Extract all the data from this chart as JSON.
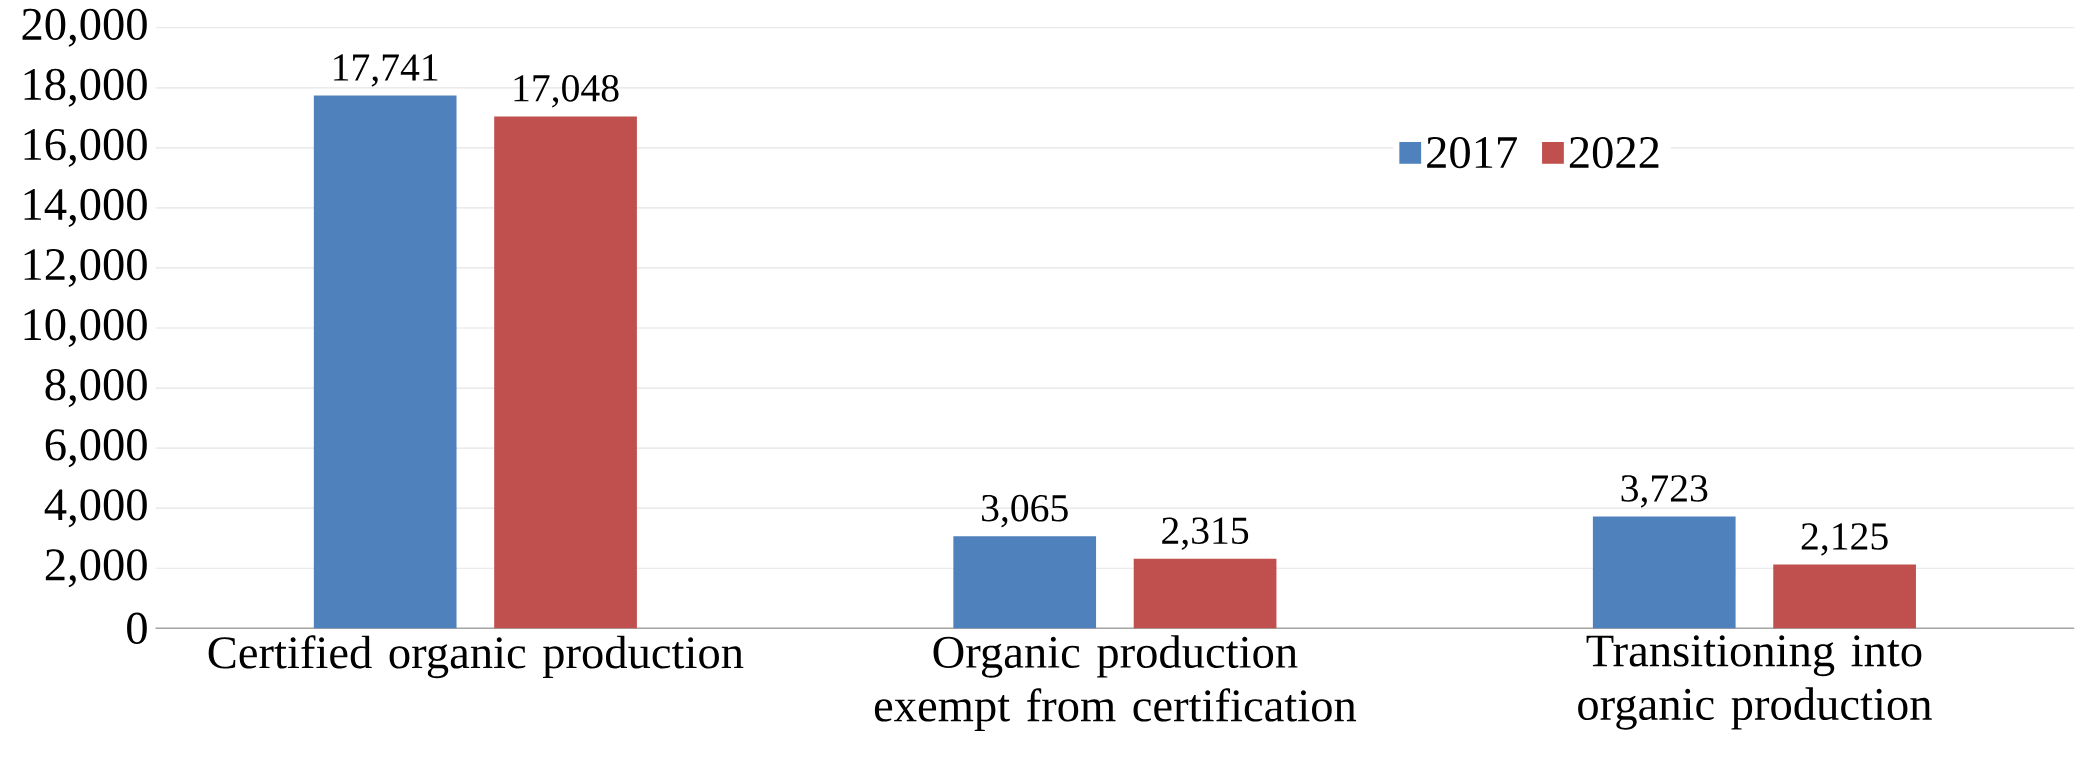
{
  "chart_data": {
    "type": "bar",
    "categories": [
      "Certified organic production",
      "Organic production exempt from certification",
      "Transitioning into organic production"
    ],
    "series": [
      {
        "name": "2017",
        "color": "#4f81bd",
        "values": [
          17741,
          3065,
          3723
        ],
        "value_labels": [
          "17,741",
          "3,065",
          "3,723"
        ]
      },
      {
        "name": "2022",
        "color": "#c0504d",
        "values": [
          17048,
          2315,
          2125
        ],
        "value_labels": [
          "17,048",
          "2,315",
          "2,125"
        ]
      }
    ],
    "ylim": [
      0,
      20000
    ],
    "yticks": [
      {
        "value": 0,
        "label": "0"
      },
      {
        "value": 2000,
        "label": "2,000"
      },
      {
        "value": 4000,
        "label": "4,000"
      },
      {
        "value": 6000,
        "label": "6,000"
      },
      {
        "value": 8000,
        "label": "8,000"
      },
      {
        "value": 10000,
        "label": "10,000"
      },
      {
        "value": 12000,
        "label": "12,000"
      },
      {
        "value": 14000,
        "label": "14,000"
      },
      {
        "value": 16000,
        "label": "16,000"
      },
      {
        "value": 18000,
        "label": "18,000"
      },
      {
        "value": 20000,
        "label": "20,000"
      }
    ],
    "grid": "y",
    "legend": "top right"
  }
}
